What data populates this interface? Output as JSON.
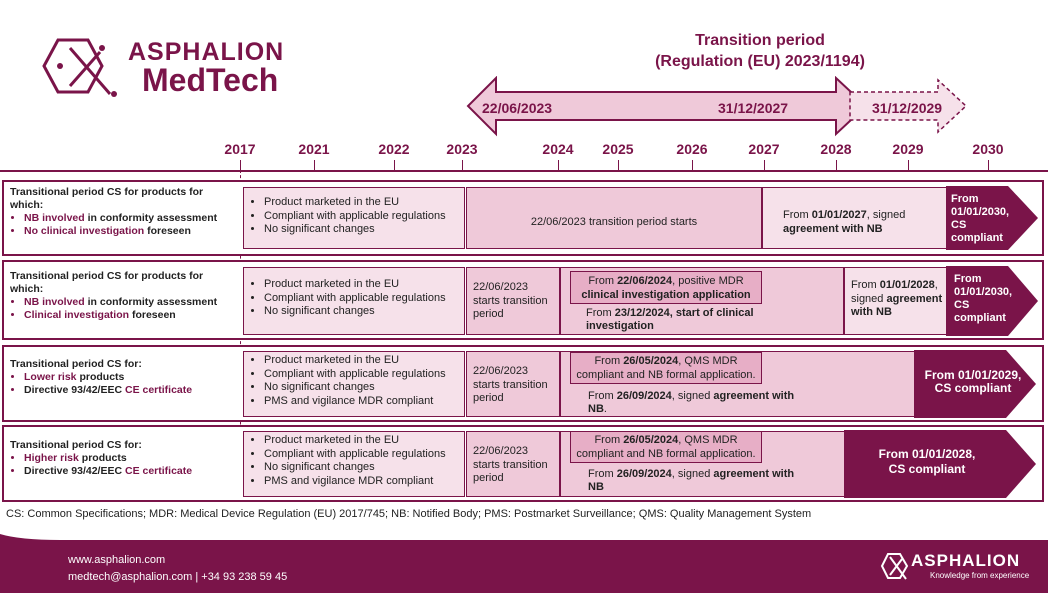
{
  "brand": {
    "line1": "ASPHALION",
    "line2": "MedTech"
  },
  "transition": {
    "title1": "Transition period",
    "title2": "(Regulation (EU) 2023/1194)",
    "date_start": "22/06/2023",
    "date_mid": "31/12/2027",
    "date_end": "31/12/2029"
  },
  "years": [
    "2017",
    "2021",
    "2022",
    "2023",
    "2024",
    "2025",
    "2026",
    "2027",
    "2028",
    "2029",
    "2030"
  ],
  "rows": [
    {
      "title": "Transitional period CS for products for which:",
      "bullet1_hl": "NB involved",
      "bullet1_rest": " in conformity assessment",
      "bullet2_hl": "No clinical investigation",
      "bullet2_rest": " foreseen",
      "conditions": [
        "Product marketed in the EU",
        "Compliant with applicable regulations",
        "No significant changes"
      ],
      "start": "22/06/2023 transition period starts",
      "mid_pre": "From ",
      "mid_bold": "01/01/2027",
      "mid_post": ", signed",
      "mid_bold2": "agreement with NB",
      "end": "From 01/01/2030, CS compliant"
    },
    {
      "title": "Transitional period CS for products for which:",
      "bullet1_hl": "NB involved",
      "bullet1_rest": " in conformity assessment",
      "bullet2_hl": "Clinical investigation",
      "bullet2_rest": " foreseen",
      "conditions": [
        "Product marketed in the EU",
        "Compliant with applicable regulations",
        "No significant changes"
      ],
      "start": "22/06/2023 starts transition period",
      "box_pre": "From ",
      "box_bold": "22/06/2024",
      "box_post": ", positive MDR",
      "box_bold2": "clinical investigation application",
      "sub_pre": "From ",
      "sub_bold": "23/12/2024, start of clinical investigation",
      "mid_pre": "From ",
      "mid_bold": "01/01/2028",
      "mid_post": ",",
      "mid_pre2": "signed ",
      "mid_bold2": "agreement with NB",
      "end": "From 01/01/2030, CS compliant"
    },
    {
      "title": "Transitional period CS for:",
      "bullet1_hl": "Lower risk",
      "bullet1_rest": " products",
      "bullet2_pre": "Directive 93/42/EEC ",
      "bullet2_hl": "CE certificate",
      "conditions": [
        "Product marketed in the EU",
        "Compliant with applicable regulations",
        "No significant changes",
        "PMS and vigilance MDR compliant"
      ],
      "start": "22/06/2023 starts transition period",
      "box_pre": "From ",
      "box_bold": "26/05/2024",
      "box_post": ", QMS MDR compliant and NB formal application.",
      "sub_pre": "From ",
      "sub_bold": "26/09/2024",
      "sub_post": ", signed ",
      "sub_bold2": "agreement with NB",
      "sub_end": ".",
      "end": "From 01/01/2029, CS compliant"
    },
    {
      "title": "Transitional period CS for:",
      "bullet1_hl": "Higher risk",
      "bullet1_rest": " products",
      "bullet2_pre": "Directive 93/42/EEC ",
      "bullet2_hl": "CE certificate",
      "conditions": [
        "Product marketed in the EU",
        "Compliant with applicable regulations",
        "No significant changes",
        "PMS and vigilance MDR compliant"
      ],
      "start": "22/06/2023 starts transition period",
      "box_pre": "From ",
      "box_bold": "26/05/2024",
      "box_post": ", QMS MDR compliant and NB formal application.",
      "sub_pre": "From ",
      "sub_bold": "26/09/2024",
      "sub_post": ", signed ",
      "sub_bold2": "agreement with NB",
      "end": "From 01/01/2028, CS compliant"
    }
  ],
  "legend": "CS: Common Specifications; MDR: Medical Device Regulation (EU) 2017/745; NB: Notified Body; PMS: Postmarket Surveillance; QMS: Quality Management System",
  "footer": {
    "website": "www.asphalion.com",
    "email": "medtech@asphalion.com",
    "phone": " | +34 93 238 59 45",
    "logo": "ASPHALION",
    "tagline": "Knowledge from experience"
  },
  "colors": {
    "wine": "#7a1449",
    "light": "#f6e1ea",
    "mid": "#efc9d9",
    "strong": "#e7aec6"
  }
}
